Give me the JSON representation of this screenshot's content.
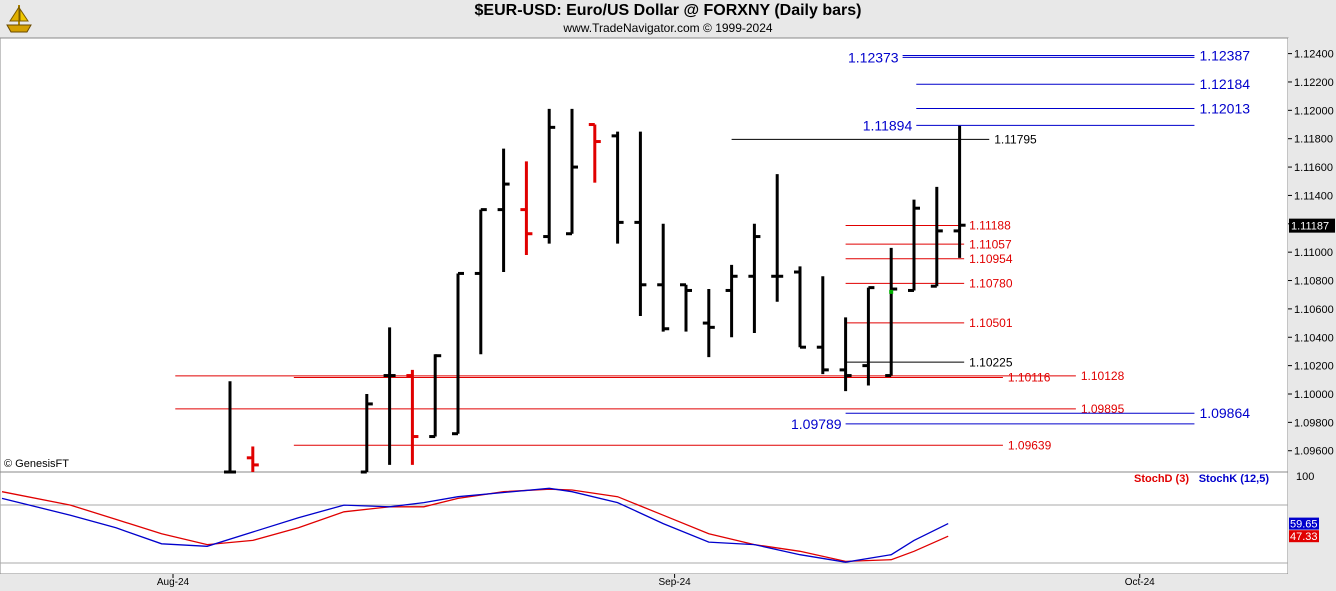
{
  "header": {
    "title": "$EUR-USD:  Euro/US Dollar @ FORXNY  (Daily bars)",
    "subtitle": "www.TradeNavigator.com © 1999-2024"
  },
  "copyright": "© GenesisFT",
  "colors": {
    "bar_up": "#000000",
    "bar_down": "#e00000",
    "level_red": "#e00000",
    "level_blue": "#0000cc",
    "level_black": "#000000",
    "stoch_d": "#e00000",
    "stoch_k": "#0000cc",
    "dot_green": "#00b000",
    "panel_bg": "#e8e8e8"
  },
  "chart_data": [
    {
      "type": "ohlc",
      "title": "$EUR-USD:  Euro/US Dollar @ FORXNY  (Daily bars)",
      "ylim": [
        1.0945,
        1.1251
      ],
      "y_ticks": [
        "1.09600",
        "1.09800",
        "1.10000",
        "1.10200",
        "1.10400",
        "1.10600",
        "1.10800",
        "1.11000",
        "1.11200",
        "1.11400",
        "1.11600",
        "1.11800",
        "1.12000",
        "1.12200",
        "1.12400"
      ],
      "x_ticks": [
        "Aug-24",
        "Sep-24",
        "Oct-24"
      ],
      "last_price": "1.11187",
      "bars": [
        {
          "i": 0,
          "o": 1.0945,
          "h": 1.1009,
          "l": 1.0945,
          "c": 1.0945,
          "col": "up"
        },
        {
          "i": 1,
          "o": 1.0955,
          "h": 1.0963,
          "l": 1.0945,
          "c": 1.095,
          "col": "down"
        },
        {
          "i": 6,
          "o": 1.0945,
          "h": 1.1,
          "l": 1.0945,
          "c": 1.0993,
          "col": "up"
        },
        {
          "i": 7,
          "o": 1.1013,
          "h": 1.1047,
          "l": 1.095,
          "c": 1.1013,
          "col": "up"
        },
        {
          "i": 8,
          "o": 1.1013,
          "h": 1.1017,
          "l": 1.095,
          "c": 1.097,
          "col": "down"
        },
        {
          "i": 9,
          "o": 1.097,
          "h": 1.1028,
          "l": 1.097,
          "c": 1.1027,
          "col": "up"
        },
        {
          "i": 10,
          "o": 1.0972,
          "h": 1.1085,
          "l": 1.0972,
          "c": 1.1085,
          "col": "up"
        },
        {
          "i": 11,
          "o": 1.1085,
          "h": 1.113,
          "l": 1.1028,
          "c": 1.113,
          "col": "up"
        },
        {
          "i": 12,
          "o": 1.113,
          "h": 1.1173,
          "l": 1.1086,
          "c": 1.1148,
          "col": "up"
        },
        {
          "i": 13,
          "o": 1.113,
          "h": 1.1164,
          "l": 1.1098,
          "c": 1.1113,
          "col": "down"
        },
        {
          "i": 14,
          "o": 1.1111,
          "h": 1.1201,
          "l": 1.1106,
          "c": 1.1188,
          "col": "up"
        },
        {
          "i": 15,
          "o": 1.1113,
          "h": 1.1201,
          "l": 1.1113,
          "c": 1.116,
          "col": "up"
        },
        {
          "i": 16,
          "o": 1.119,
          "h": 1.119,
          "l": 1.1149,
          "c": 1.1178,
          "col": "down"
        },
        {
          "i": 17,
          "o": 1.1182,
          "h": 1.1185,
          "l": 1.1106,
          "c": 1.1121,
          "col": "up"
        },
        {
          "i": 18,
          "o": 1.1121,
          "h": 1.1185,
          "l": 1.1055,
          "c": 1.1077,
          "col": "up"
        },
        {
          "i": 19,
          "o": 1.1077,
          "h": 1.112,
          "l": 1.1044,
          "c": 1.1046,
          "col": "up"
        },
        {
          "i": 20,
          "o": 1.1077,
          "h": 1.1077,
          "l": 1.1044,
          "c": 1.1073,
          "col": "up"
        },
        {
          "i": 21,
          "o": 1.105,
          "h": 1.1074,
          "l": 1.1026,
          "c": 1.1047,
          "col": "up"
        },
        {
          "i": 22,
          "o": 1.1073,
          "h": 1.1091,
          "l": 1.104,
          "c": 1.1083,
          "col": "up"
        },
        {
          "i": 23,
          "o": 1.1083,
          "h": 1.112,
          "l": 1.1043,
          "c": 1.1111,
          "col": "up"
        },
        {
          "i": 24,
          "o": 1.1083,
          "h": 1.1155,
          "l": 1.1065,
          "c": 1.1083,
          "col": "up"
        },
        {
          "i": 25,
          "o": 1.1086,
          "h": 1.109,
          "l": 1.1033,
          "c": 1.1033,
          "col": "up"
        },
        {
          "i": 26,
          "o": 1.1033,
          "h": 1.1083,
          "l": 1.1014,
          "c": 1.1017,
          "col": "up"
        },
        {
          "i": 27,
          "o": 1.1017,
          "h": 1.1054,
          "l": 1.1002,
          "c": 1.1013,
          "col": "up"
        },
        {
          "i": 28,
          "o": 1.102,
          "h": 1.1075,
          "l": 1.1006,
          "c": 1.1075,
          "col": "up"
        },
        {
          "i": 29,
          "o": 1.1013,
          "h": 1.1103,
          "l": 1.1013,
          "c": 1.1074,
          "col": "up"
        },
        {
          "i": 30,
          "o": 1.1073,
          "h": 1.1137,
          "l": 1.1073,
          "c": 1.1131,
          "col": "up"
        },
        {
          "i": 31,
          "o": 1.1076,
          "h": 1.1146,
          "l": 1.1076,
          "c": 1.1115,
          "col": "up"
        },
        {
          "i": 32,
          "o": 1.1115,
          "h": 1.1189,
          "l": 1.1096,
          "c": 1.1119,
          "col": "up"
        }
      ],
      "green_dot": {
        "i": 29,
        "y": 1.1072
      },
      "levels": [
        {
          "y": 1.11795,
          "label": "1.11795",
          "color": "black",
          "x0": 22,
          "x1": 33.3,
          "label_side": "right"
        },
        {
          "y": 1.11188,
          "label": "1.11188",
          "color": "red",
          "x0": 27,
          "x1": 32.2,
          "label_side": "right"
        },
        {
          "y": 1.11057,
          "label": "1.11057",
          "color": "red",
          "x0": 27,
          "x1": 32.2,
          "label_side": "right"
        },
        {
          "y": 1.10954,
          "label": "1.10954",
          "color": "red",
          "x0": 27,
          "x1": 32.2,
          "label_side": "right"
        },
        {
          "y": 1.1078,
          "label": "1.10780",
          "color": "red",
          "x0": 27,
          "x1": 32.2,
          "label_side": "right"
        },
        {
          "y": 1.10501,
          "label": "1.10501",
          "color": "red",
          "x0": 27,
          "x1": 32.2,
          "label_side": "right"
        },
        {
          "y": 1.10225,
          "label": "1.10225",
          "color": "black",
          "x0": 27,
          "x1": 32.2,
          "label_side": "right"
        },
        {
          "y": 1.10128,
          "label": "1.10128",
          "color": "red",
          "x0": -2.4,
          "x1": 37.1,
          "label_side": "right"
        },
        {
          "y": 1.10116,
          "label": "1.10116",
          "color": "red",
          "x0": 2.8,
          "x1": 33.9,
          "label_side": "right"
        },
        {
          "y": 1.09895,
          "label": "1.09895",
          "color": "red",
          "x0": -2.4,
          "x1": 37.1,
          "label_side": "right"
        },
        {
          "y": 1.09639,
          "label": "1.09639",
          "color": "red",
          "x0": 2.8,
          "x1": 33.9,
          "label_side": "right"
        },
        {
          "y": 1.12387,
          "label": "1.12387",
          "color": "blue",
          "x0": 29.5,
          "x1": 42.3,
          "label_side": "right"
        },
        {
          "y": 1.12373,
          "label": "1.12373",
          "color": "blue",
          "x0": 29.5,
          "x1": 42.3,
          "label_side": "left"
        },
        {
          "y": 1.12184,
          "label": "1.12184",
          "color": "blue",
          "x0": 30.1,
          "x1": 42.3,
          "label_side": "right"
        },
        {
          "y": 1.12013,
          "label": "1.12013",
          "color": "blue",
          "x0": 30.1,
          "x1": 42.3,
          "label_side": "right"
        },
        {
          "y": 1.11894,
          "label": "1.11894",
          "color": "blue",
          "x0": 30.1,
          "x1": 42.3,
          "label_side": "left"
        },
        {
          "y": 1.09864,
          "label": "1.09864",
          "color": "blue",
          "x0": 27,
          "x1": 42.3,
          "label_side": "right"
        },
        {
          "y": 1.09789,
          "label": "1.09789",
          "color": "blue",
          "x0": 27,
          "x1": 42.3,
          "label_side": "left"
        }
      ]
    },
    {
      "type": "line",
      "ylim": [
        0,
        100
      ],
      "y_ticks": [
        "100"
      ],
      "legend": [
        "StochD (3)",
        "StochK (12,5)"
      ],
      "series": [
        {
          "name": "StochD (3)",
          "last_label": "47.33",
          "x": [
            -10,
            -7,
            -5,
            -3,
            -1,
            1,
            3,
            5,
            7,
            8.5,
            10,
            12,
            14,
            15,
            17,
            19,
            21,
            23,
            25,
            27,
            29,
            30,
            31.5
          ],
          "values": [
            98,
            82,
            65,
            48,
            35,
            40,
            55,
            74,
            80,
            80,
            90,
            98,
            101,
            100,
            92,
            70,
            48,
            35,
            27,
            15,
            17,
            27,
            45
          ]
        },
        {
          "name": "StochK (12,5)",
          "last_label": "59.65",
          "x": [
            -10,
            -7,
            -5,
            -3,
            -1,
            1,
            3,
            5,
            7,
            8.5,
            10,
            12,
            14,
            15,
            17,
            19,
            21,
            23,
            25,
            27,
            29,
            30,
            31.5
          ],
          "values": [
            90,
            70,
            55,
            36,
            33,
            50,
            67,
            82,
            80,
            85,
            92,
            97,
            102,
            98,
            85,
            60,
            38,
            35,
            23,
            14,
            23,
            40,
            60
          ]
        }
      ]
    }
  ]
}
